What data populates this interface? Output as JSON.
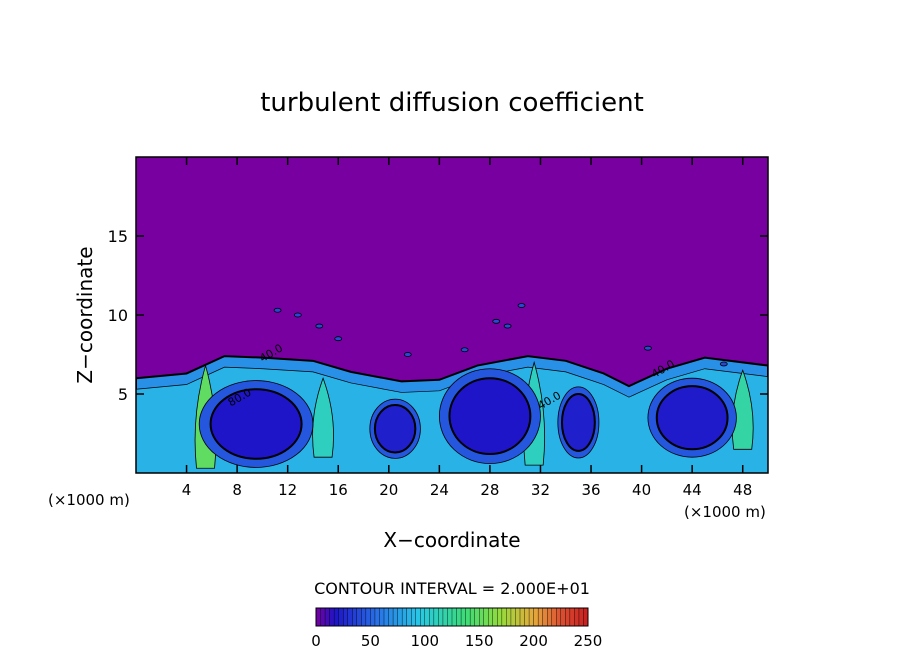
{
  "chart_data": {
    "type": "heatmap",
    "title": "turbulent diffusion coefficient",
    "xlabel": "X−coordinate",
    "ylabel": "Z−coordinate",
    "x_unit_left": "(×1000 m)",
    "x_unit_right": "(×1000 m)",
    "xlim": [
      0,
      50
    ],
    "ylim": [
      0,
      20
    ],
    "x_ticks": [
      4,
      8,
      12,
      16,
      20,
      24,
      28,
      32,
      36,
      40,
      44,
      48
    ],
    "x_tick_labels": [
      "4",
      "8",
      "12",
      "16",
      "20",
      "24",
      "28",
      "32",
      "36",
      "40",
      "44",
      "48"
    ],
    "y_ticks": [
      5,
      10,
      15
    ],
    "y_tick_labels": [
      "5",
      "10",
      "15"
    ],
    "background_value": 0,
    "mixed_layer_top": [
      {
        "x": 0,
        "z": 6.0
      },
      {
        "x": 4,
        "z": 6.3
      },
      {
        "x": 7,
        "z": 7.4
      },
      {
        "x": 10,
        "z": 7.3
      },
      {
        "x": 14,
        "z": 7.1
      },
      {
        "x": 17,
        "z": 6.4
      },
      {
        "x": 21,
        "z": 5.8
      },
      {
        "x": 24,
        "z": 5.9
      },
      {
        "x": 27,
        "z": 6.8
      },
      {
        "x": 31,
        "z": 7.4
      },
      {
        "x": 34,
        "z": 7.1
      },
      {
        "x": 37,
        "z": 6.3
      },
      {
        "x": 39,
        "z": 5.5
      },
      {
        "x": 42,
        "z": 6.6
      },
      {
        "x": 45,
        "z": 7.3
      },
      {
        "x": 50,
        "z": 6.8
      }
    ],
    "eddies": [
      {
        "x": 9.5,
        "z": 3.1,
        "rx": 3.6,
        "rz": 2.2,
        "value": 18
      },
      {
        "x": 20.5,
        "z": 2.8,
        "rx": 1.6,
        "rz": 1.5,
        "value": 22
      },
      {
        "x": 28.0,
        "z": 3.6,
        "rx": 3.2,
        "rz": 2.4,
        "value": 18
      },
      {
        "x": 35.0,
        "z": 3.2,
        "rx": 1.3,
        "rz": 1.8,
        "value": 22
      },
      {
        "x": 44.0,
        "z": 3.5,
        "rx": 2.8,
        "rz": 2.0,
        "value": 20
      }
    ],
    "plumes": [
      {
        "x": 5.5,
        "z0": 0.3,
        "z1": 6.8,
        "value": 150
      },
      {
        "x": 14.8,
        "z0": 1.0,
        "z1": 6.0,
        "value": 110
      },
      {
        "x": 31.5,
        "z0": 0.5,
        "z1": 7.0,
        "value": 110
      },
      {
        "x": 48.0,
        "z0": 1.5,
        "z1": 6.5,
        "value": 120
      }
    ],
    "contour_labels": [
      {
        "x": 10.0,
        "z": 7.0,
        "text": "40.0"
      },
      {
        "x": 7.5,
        "z": 4.2,
        "text": "80.0"
      },
      {
        "x": 32.0,
        "z": 4.0,
        "text": "40.0"
      },
      {
        "x": 41.0,
        "z": 6.0,
        "text": "40.0"
      }
    ],
    "scattered_cells": [
      {
        "x": 11.2,
        "z": 10.3
      },
      {
        "x": 12.8,
        "z": 10.0
      },
      {
        "x": 14.5,
        "z": 9.3
      },
      {
        "x": 16.0,
        "z": 8.5
      },
      {
        "x": 28.5,
        "z": 9.6
      },
      {
        "x": 29.4,
        "z": 9.3
      },
      {
        "x": 30.5,
        "z": 10.6
      },
      {
        "x": 21.5,
        "z": 7.5
      },
      {
        "x": 26.0,
        "z": 7.8
      },
      {
        "x": 40.5,
        "z": 7.9
      },
      {
        "x": 46.5,
        "z": 6.9
      }
    ],
    "colorbar": {
      "min": 0,
      "max": 250,
      "tick_values": [
        0,
        50,
        100,
        150,
        200,
        250
      ],
      "tick_labels": [
        "0",
        "50",
        "100",
        "150",
        "200",
        "250"
      ]
    },
    "contour_interval_text": "CONTOUR INTERVAL = 2.000E+01"
  }
}
